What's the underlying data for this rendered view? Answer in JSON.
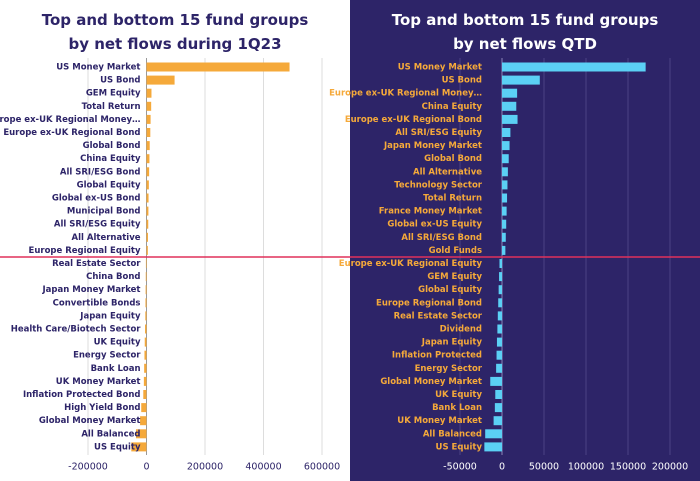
{
  "chart_data": [
    {
      "type": "bar",
      "orientation": "horizontal",
      "title": "Top and bottom 15 fund groups by net flows during 1Q23",
      "categories": [
        "US Money Market",
        "US Bond",
        "GEM Equity",
        "Total Return",
        "Europe ex-UK Regional Money…",
        "Europe ex-UK Regional Bond",
        "Global Bond",
        "China Equity",
        "All SRI/ESG Bond",
        "Global Equity",
        "Global ex-US Bond",
        "Municipal Bond",
        "All SRI/ESG Equity",
        "All Alternative",
        "Europe Regional Equity",
        "Real Estate Sector",
        "China Bond",
        "Japan Money Market",
        "Convertible Bonds",
        "Japan Equity",
        "Health Care/Biotech Sector",
        "UK Equity",
        "Energy Sector",
        "Bank Loan",
        "UK Money Market",
        "Inflation Protected Bond",
        "High Yield Bond",
        "Global Money Market",
        "All Balanced",
        "US Equity"
      ],
      "values": [
        489000,
        96000,
        17000,
        16000,
        14000,
        13000,
        11000,
        10000,
        9000,
        8000,
        7000,
        6500,
        6000,
        5000,
        4500,
        -2000,
        -2500,
        -3000,
        -3500,
        -4000,
        -5000,
        -6000,
        -7000,
        -8000,
        -9000,
        -11000,
        -18000,
        -22000,
        -36000,
        -52000
      ],
      "color": "#f5a93a",
      "xlim": [
        -200000,
        600000
      ],
      "xticks": [
        -200000,
        0,
        200000,
        400000,
        600000
      ],
      "grid": true
    },
    {
      "type": "bar",
      "orientation": "horizontal",
      "title": "Top and bottom 15 fund groups by net flows QTD",
      "categories": [
        "US Money Market",
        "US Bond",
        "Europe ex-UK Regional Money…",
        "China Equity",
        "Europe ex-UK Regional Bond",
        "All SRI/ESG Equity",
        "Japan Money Market",
        "Global Bond",
        "All Alternative",
        "Technology Sector",
        "Total Return",
        "France Money Market",
        "Global ex-US Equity",
        "All SRI/ESG Bond",
        "Gold Funds",
        "Europe ex-UK Regional  Equity",
        "GEM Equity",
        "Global Equity",
        "Europe Regional Bond",
        "Real Estate Sector",
        "Dividend",
        "Japan Equity",
        "Inflation Protected",
        "Energy Sector",
        "Global Money Market",
        "UK Equity",
        "Bank Loan",
        "UK Money Market",
        "All Balanced",
        "US Equity"
      ],
      "values": [
        171000,
        45000,
        18000,
        17000,
        18500,
        10000,
        9000,
        8000,
        7000,
        6500,
        6000,
        5500,
        5000,
        4500,
        4000,
        -3000,
        -3500,
        -4000,
        -4500,
        -5000,
        -5500,
        -6000,
        -6500,
        -7000,
        -14000,
        -8000,
        -8500,
        -10000,
        -20000,
        -21000
      ],
      "color": "#5bd0f5",
      "xlim": [
        -50000,
        200000
      ],
      "xticks": [
        -50000,
        0,
        50000,
        100000,
        150000,
        200000
      ],
      "grid": true
    }
  ]
}
